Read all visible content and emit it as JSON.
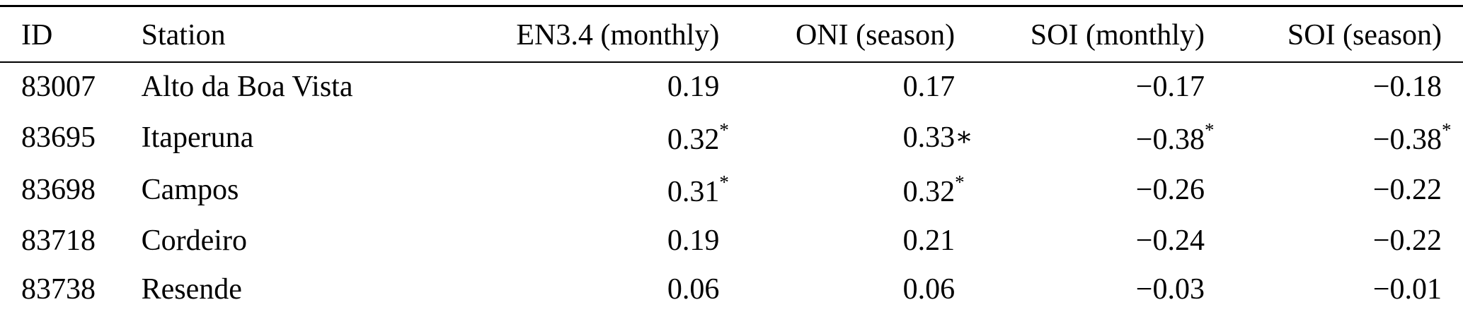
{
  "table": {
    "columns": [
      {
        "label": "ID",
        "align": "left"
      },
      {
        "label": "Station",
        "align": "left"
      },
      {
        "label": "EN3.4 (monthly)",
        "align": "right"
      },
      {
        "label": "ONI (season)",
        "align": "right"
      },
      {
        "label": "SOI (monthly)",
        "align": "right"
      },
      {
        "label": "SOI (season)",
        "align": "right"
      }
    ],
    "rows": [
      [
        "83007",
        "Alto da Boa Vista",
        "0.19",
        "0.17",
        "−0.17",
        "−0.18"
      ],
      [
        "83695",
        "Itaperuna",
        "0.32*",
        "0.33∗",
        "−0.38*",
        "−0.38*"
      ],
      [
        "83698",
        "Campos",
        "0.31*",
        "0.32*",
        "−0.26",
        "−0.22"
      ],
      [
        "83718",
        "Cordeiro",
        "0.19",
        "0.21",
        "−0.24",
        "−0.22"
      ],
      [
        "83738",
        "Resende",
        "0.06",
        "0.06",
        "−0.03",
        "−0.01"
      ]
    ]
  }
}
